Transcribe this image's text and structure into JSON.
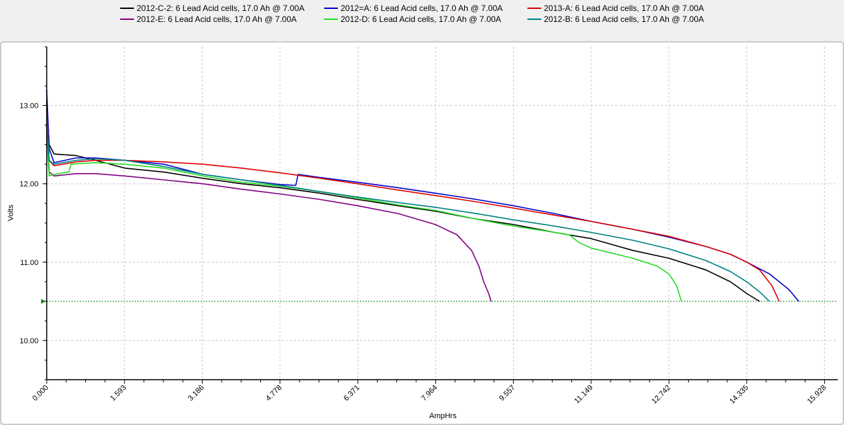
{
  "chart_data": {
    "type": "line",
    "title": "",
    "xlabel": "AmpHrs",
    "ylabel": "Volts",
    "xlim": [
      0,
      16.2
    ],
    "ylim": [
      9.5,
      13.75
    ],
    "x_ticks": [
      "0.000",
      "1.593",
      "3.186",
      "4.778",
      "6.371",
      "7.964",
      "9.557",
      "11.149",
      "12.742",
      "14.335",
      "15.928"
    ],
    "y_ticks": [
      "10.00",
      "11.00",
      "12.00",
      "13.00"
    ],
    "grid": true,
    "legend_position": "top",
    "cutoff_line": {
      "y": 10.5,
      "color": "#008000"
    },
    "series": [
      {
        "name": "2012-C-2: 6 Lead Acid cells, 17.0 Ah @ 7.00A",
        "color": "#000000",
        "x": [
          0,
          0.05,
          0.15,
          0.6,
          1.0,
          1.6,
          2.4,
          3.2,
          4.0,
          4.78,
          5.6,
          6.37,
          7.2,
          7.96,
          8.8,
          9.56,
          10.4,
          11.15,
          12.0,
          12.74,
          13.5,
          14.0,
          14.335,
          14.6
        ],
        "y": [
          13.05,
          12.5,
          12.38,
          12.36,
          12.3,
          12.2,
          12.15,
          12.07,
          12.0,
          11.95,
          11.88,
          11.8,
          11.72,
          11.65,
          11.55,
          11.48,
          11.38,
          11.3,
          11.15,
          11.05,
          10.9,
          10.75,
          10.6,
          10.5
        ]
      },
      {
        "name": "2012=A: 6 Lead Acid cells, 17.0 Ah @ 7.00A",
        "color": "#0000cc",
        "x": [
          0,
          0.05,
          0.15,
          0.6,
          1.0,
          1.6,
          2.4,
          3.2,
          4.0,
          4.78,
          5.1,
          5.15,
          5.6,
          6.37,
          7.2,
          7.96,
          8.8,
          9.56,
          10.4,
          11.15,
          12.0,
          12.74,
          13.5,
          14.0,
          14.335,
          14.8,
          15.2,
          15.4
        ],
        "y": [
          13.2,
          12.45,
          12.27,
          12.33,
          12.33,
          12.3,
          12.25,
          12.12,
          12.05,
          11.99,
          11.98,
          12.12,
          12.08,
          12.02,
          11.95,
          11.88,
          11.8,
          11.72,
          11.62,
          11.52,
          11.42,
          11.32,
          11.2,
          11.1,
          11.0,
          10.85,
          10.65,
          10.5
        ]
      },
      {
        "name": "2013-A: 6 Lead Acid cells, 17.0 Ah @ 7.00A",
        "color": "#dd0000",
        "x": [
          0,
          0.05,
          0.15,
          0.6,
          1.0,
          1.6,
          2.4,
          3.2,
          4.0,
          4.78,
          5.6,
          6.37,
          7.2,
          7.96,
          8.8,
          9.56,
          10.4,
          11.15,
          12.0,
          12.74,
          13.5,
          14.0,
          14.335,
          14.6,
          14.85,
          15.0
        ],
        "y": [
          12.95,
          12.3,
          12.23,
          12.28,
          12.3,
          12.3,
          12.28,
          12.25,
          12.2,
          12.14,
          12.07,
          12.0,
          11.92,
          11.85,
          11.77,
          11.69,
          11.6,
          11.52,
          11.42,
          11.33,
          11.2,
          11.1,
          11.0,
          10.9,
          10.7,
          10.5
        ]
      },
      {
        "name": "2012-E: 6 Lead Acid cells, 17.0 Ah @ 7.00A",
        "color": "#800080",
        "x": [
          0,
          0.05,
          0.15,
          0.6,
          1.0,
          1.6,
          2.4,
          3.2,
          4.0,
          4.78,
          5.6,
          6.37,
          7.2,
          7.96,
          8.4,
          8.7,
          8.85,
          8.95,
          9.05,
          9.1
        ],
        "y": [
          12.75,
          12.15,
          12.1,
          12.13,
          12.13,
          12.1,
          12.05,
          12.0,
          11.93,
          11.87,
          11.8,
          11.72,
          11.62,
          11.48,
          11.35,
          11.15,
          10.95,
          10.75,
          10.6,
          10.5
        ]
      },
      {
        "name": "2012-D: 6 Lead Acid cells, 17.0 Ah @ 7.00A",
        "color": "#22dd22",
        "x": [
          0,
          0.05,
          0.15,
          0.45,
          0.5,
          1.0,
          1.6,
          2.4,
          3.2,
          4.0,
          4.78,
          5.6,
          6.37,
          7.2,
          7.96,
          8.8,
          9.56,
          10.4,
          10.7,
          10.9,
          11.15,
          12.0,
          12.5,
          12.74,
          12.9,
          13.0
        ],
        "y": [
          12.6,
          12.1,
          12.12,
          12.15,
          12.25,
          12.27,
          12.25,
          12.2,
          12.1,
          12.02,
          11.97,
          11.9,
          11.82,
          11.73,
          11.66,
          11.55,
          11.46,
          11.38,
          11.35,
          11.25,
          11.18,
          11.05,
          10.95,
          10.85,
          10.7,
          10.5
        ]
      },
      {
        "name": "2012-B: 6 Lead Acid cells, 17.0 Ah @ 7.00A",
        "color": "#008080",
        "x": [
          0,
          0.05,
          0.15,
          0.6,
          1.0,
          1.6,
          2.4,
          3.2,
          4.0,
          4.78,
          5.6,
          6.37,
          7.2,
          7.96,
          8.8,
          9.56,
          10.4,
          11.15,
          12.0,
          12.74,
          13.5,
          14.0,
          14.335,
          14.6,
          14.8
        ],
        "y": [
          12.85,
          12.3,
          12.25,
          12.3,
          12.32,
          12.3,
          12.22,
          12.12,
          12.05,
          11.98,
          11.9,
          11.83,
          11.76,
          11.7,
          11.62,
          11.54,
          11.46,
          11.38,
          11.28,
          11.17,
          11.02,
          10.88,
          10.75,
          10.62,
          10.5
        ]
      }
    ]
  }
}
